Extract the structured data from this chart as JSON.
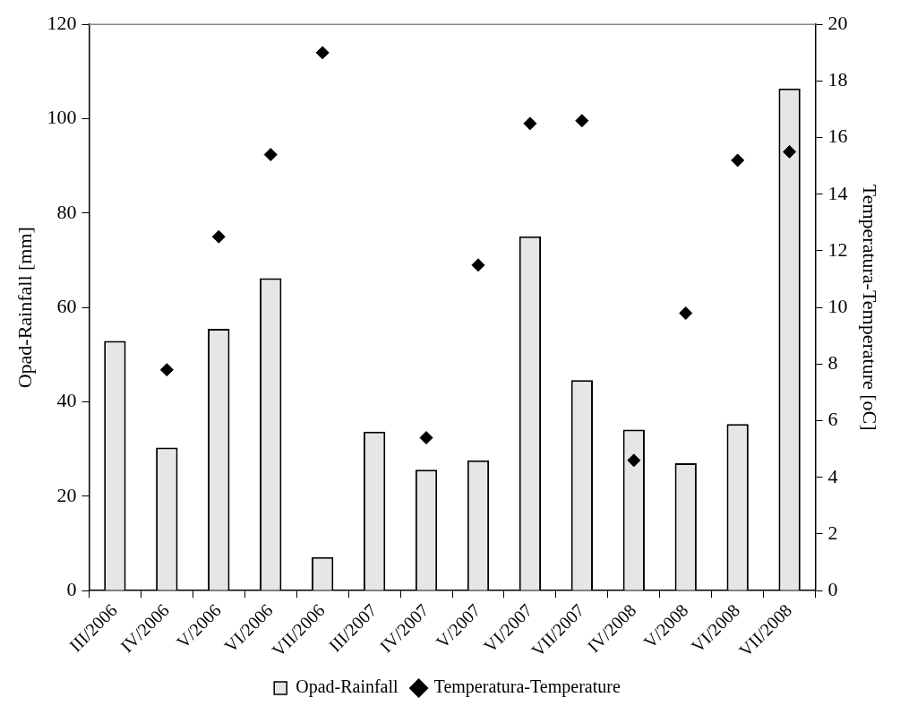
{
  "chart_data": {
    "type": "bar",
    "ylabel": "Opad-Rainfall [mm]",
    "y2label": "Temperatura-Temperature [oC]",
    "categories": [
      "III/2006",
      "IV/2006",
      "V/2006",
      "VI/2006",
      "VII/2006",
      "III/2007",
      "IV/2007",
      "V/2007",
      "VI/2007",
      "VII/2007",
      "IV/2008",
      "V/2008",
      "VI/2008",
      "VII/2008"
    ],
    "series": [
      {
        "name": "Opad-Rainfall",
        "color": "#e6e6e6",
        "values": [
          52.9,
          30.3,
          55.5,
          66.2,
          7.1,
          33.7,
          25.6,
          27.6,
          75.1,
          44.6,
          34.1,
          27.0,
          35.3,
          106.4
        ]
      },
      {
        "name": "Temperatura-Temperature",
        "type": "scatter",
        "axis": "y2",
        "color": "#000000",
        "marker": "diamond",
        "values": [
          null,
          7.8,
          12.5,
          15.4,
          19.0,
          null,
          5.4,
          11.5,
          16.5,
          16.6,
          4.6,
          9.8,
          15.2,
          15.5
        ]
      }
    ],
    "ylim": [
      0,
      120
    ],
    "yticks": [
      0,
      20,
      40,
      60,
      80,
      100,
      120
    ],
    "y2lim": [
      0,
      20
    ],
    "y2ticks": [
      0,
      2,
      4,
      6,
      8,
      10,
      12,
      14,
      16,
      18,
      20
    ],
    "grid": false,
    "legend": "bottom"
  }
}
